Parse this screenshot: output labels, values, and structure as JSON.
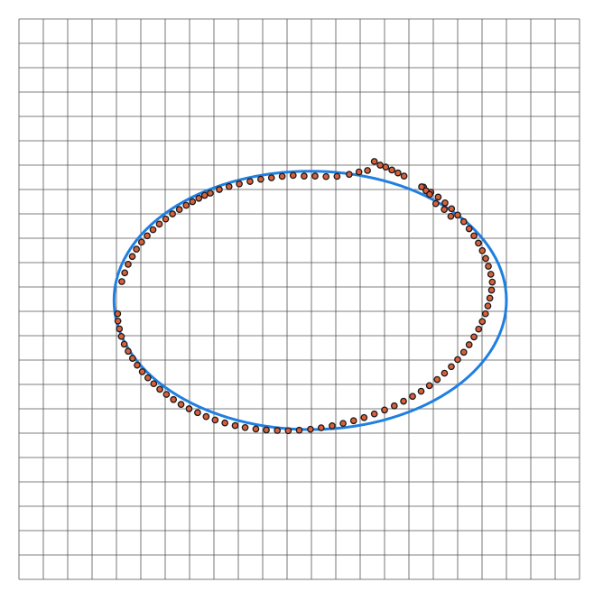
{
  "chart_data": {
    "type": "scatter",
    "title": "",
    "xlabel": "",
    "ylabel": "",
    "xlim": [
      0,
      23
    ],
    "ylim": [
      0,
      23
    ],
    "grid": true,
    "grid_step": 1,
    "axis_ticks_visible": false,
    "colors": {
      "grid": "#555555",
      "curve": "#1f7fe0",
      "point_fill": "#d9603b",
      "point_stroke": "#1a1a1a",
      "background": "#ffffff"
    },
    "series": [
      {
        "kind": "fitted_curve",
        "shape": "ellipse",
        "center": [
          11.95,
          11.45
        ],
        "rx": 8.05,
        "ry": 5.3
      },
      {
        "kind": "points",
        "x": [
          4.05,
          4.06,
          4.12,
          4.2,
          4.32,
          4.48,
          4.66,
          4.85,
          5.06,
          5.29,
          5.53,
          5.78,
          6.05,
          6.34,
          6.65,
          6.98,
          7.33,
          7.68,
          8.05,
          8.45,
          8.87,
          9.28,
          9.72,
          10.15,
          10.6,
          11.05,
          11.5,
          11.96,
          12.4,
          12.85,
          13.3,
          13.73,
          14.16,
          14.58,
          15.0,
          15.4,
          15.78,
          16.15,
          16.5,
          16.84,
          17.16,
          17.46,
          17.74,
          18.0,
          18.25,
          18.47,
          18.67,
          18.86,
          19.01,
          19.14,
          19.24,
          19.32,
          19.39,
          19.42,
          19.36,
          19.26,
          19.15,
          19.01,
          18.85,
          18.67,
          18.47,
          18.25,
          18.0,
          17.75,
          17.48,
          17.2,
          16.9,
          16.6,
          15.8,
          15.55,
          15.3,
          15.05,
          14.82,
          14.58,
          14.3,
          13.95,
          13.55,
          13.05,
          12.6,
          12.15,
          11.7,
          11.25,
          10.8,
          10.36,
          9.92,
          9.48,
          9.04,
          8.62,
          8.22,
          7.85,
          7.62,
          7.38,
          7.12,
          6.86,
          6.58,
          6.3,
          6.02,
          5.76,
          5.5,
          5.26,
          5.03,
          4.82,
          4.65,
          4.48,
          4.34,
          4.22,
          16.52,
          16.7,
          16.85,
          17.1,
          17.45,
          17.72
        ],
        "y": [
          10.9,
          10.6,
          10.28,
          9.97,
          9.65,
          9.36,
          9.07,
          8.79,
          8.52,
          8.27,
          8.03,
          7.8,
          7.59,
          7.38,
          7.18,
          7.0,
          6.84,
          6.68,
          6.54,
          6.42,
          6.31,
          6.23,
          6.17,
          6.13,
          6.11,
          6.1,
          6.12,
          6.16,
          6.22,
          6.3,
          6.4,
          6.51,
          6.64,
          6.79,
          6.95,
          7.12,
          7.31,
          7.51,
          7.72,
          7.95,
          8.2,
          8.46,
          8.73,
          9.02,
          9.32,
          9.63,
          9.95,
          10.27,
          10.58,
          10.9,
          11.22,
          11.54,
          11.87,
          12.2,
          12.52,
          12.85,
          13.17,
          13.49,
          13.8,
          14.1,
          14.39,
          14.68,
          14.95,
          15.21,
          15.45,
          15.69,
          15.89,
          16.1,
          16.55,
          16.68,
          16.8,
          16.92,
          17.0,
          17.15,
          16.78,
          16.72,
          16.62,
          16.54,
          16.53,
          16.55,
          16.55,
          16.58,
          16.54,
          16.48,
          16.42,
          16.33,
          16.23,
          16.12,
          16.0,
          15.85,
          15.76,
          15.64,
          15.5,
          15.35,
          15.18,
          15.0,
          14.79,
          14.58,
          14.35,
          14.1,
          13.84,
          13.55,
          13.25,
          12.93,
          12.58,
          12.22,
          16.11,
          15.95,
          15.8,
          15.42,
          15.18,
          14.9
        ]
      }
    ]
  }
}
